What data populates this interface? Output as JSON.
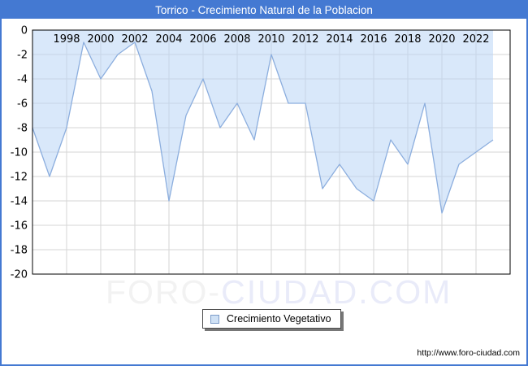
{
  "window": {
    "title": "Torrico - Crecimiento Natural de la Poblacion"
  },
  "legend": {
    "label": "Crecimiento Vegetativo",
    "swatch_fill": "#cfe1f5",
    "swatch_border": "#7c9cc9"
  },
  "watermark": {
    "part1": "FORO-",
    "part2": "CIUDAD.COM"
  },
  "footer": {
    "url": "http://www.foro-ciudad.com"
  },
  "colors": {
    "header_blue": "#4479d2",
    "line_blue": "#8caede",
    "area_fill": "rgba(185,214,245,0.55)",
    "gridline": "#d6d6d6",
    "frame": "#000000"
  },
  "chart_data": {
    "type": "area",
    "title": "Torrico - Crecimiento Natural de la Poblacion",
    "series": [
      {
        "name": "Crecimiento Vegetativo",
        "x": [
          1996,
          1997,
          1998,
          1999,
          2000,
          2001,
          2002,
          2003,
          2004,
          2005,
          2006,
          2007,
          2008,
          2009,
          2010,
          2011,
          2012,
          2013,
          2014,
          2015,
          2016,
          2017,
          2018,
          2019,
          2020,
          2021,
          2022,
          2023
        ],
        "values": [
          -8,
          -12,
          -8,
          -1,
          -4,
          -2,
          -1,
          -5,
          -14,
          -7,
          -4,
          -8,
          -6,
          -9,
          -2,
          -6,
          -6,
          -13,
          -11,
          -13,
          -14,
          -9,
          -11,
          -6,
          -15,
          -11,
          -10,
          -9
        ]
      }
    ],
    "xlim": [
      1996,
      2024
    ],
    "ylim": [
      -20,
      0
    ],
    "x_ticks": [
      1998,
      2000,
      2002,
      2004,
      2006,
      2008,
      2010,
      2012,
      2014,
      2016,
      2018,
      2020,
      2022
    ],
    "x_tick_labels": [
      "1998",
      "2000",
      "2002",
      "2004",
      "2006",
      "2008",
      "2010",
      "2012",
      "2014",
      "2016",
      "2018",
      "2020",
      "2022"
    ],
    "y_ticks": [
      0,
      -2,
      -4,
      -6,
      -8,
      -10,
      -12,
      -14,
      -16,
      -18,
      -20
    ],
    "y_tick_labels": [
      "0",
      "-2",
      "-4",
      "-6",
      "-8",
      "-10",
      "-12",
      "-14",
      "-16",
      "-18",
      "-20"
    ],
    "grid": true,
    "legend_position": "bottom-center",
    "x_labels_position": "inside-top"
  }
}
